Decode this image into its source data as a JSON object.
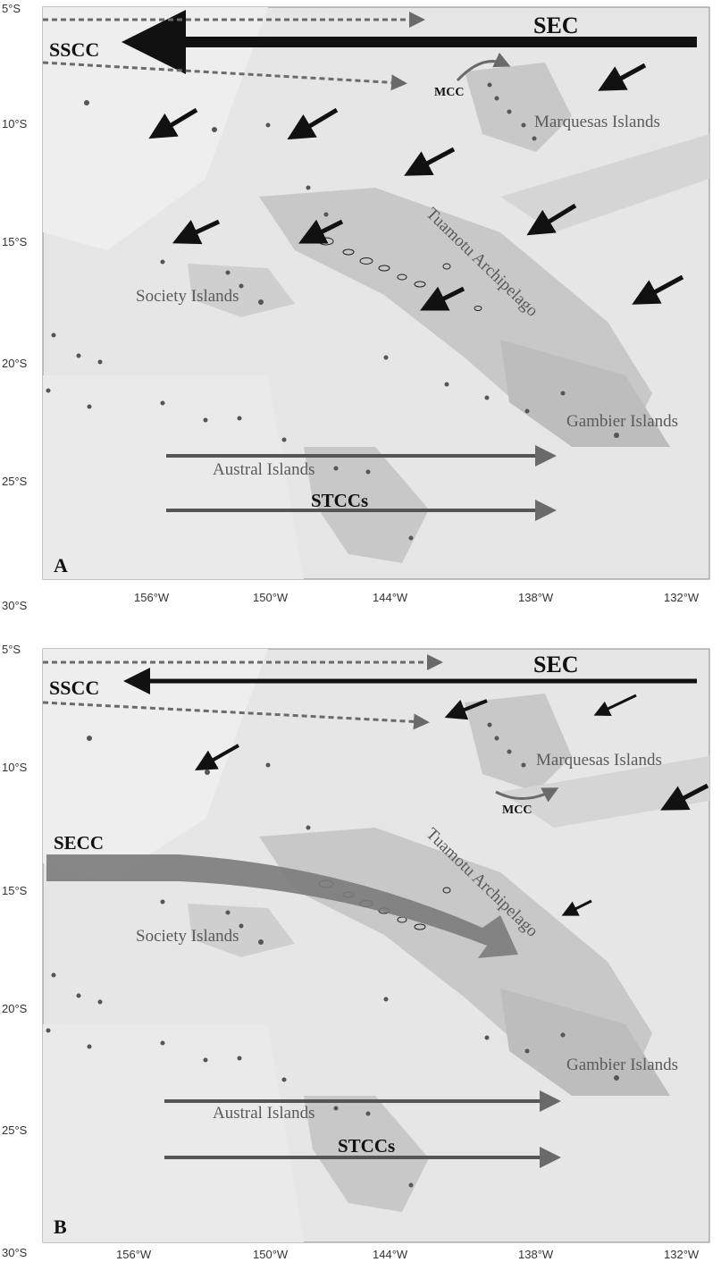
{
  "panels": [
    {
      "letter": "A",
      "lat_labels": [
        "5°S",
        "10°S",
        "15°S",
        "20°S",
        "25°S",
        "30°S"
      ],
      "lon_labels": [
        "156°W",
        "150°W",
        "144°W",
        "138°W",
        "132°W"
      ],
      "islands": {
        "marquesas": "Marquesas Islands",
        "tuamotu": "Tuamotu Archipelago",
        "society": "Society Islands",
        "gambier": "Gambier Islands",
        "austral": "Austral Islands"
      },
      "currents": {
        "sec": "SEC",
        "sscc": "SSCC",
        "mcc": "MCC",
        "stccs": "STCCs"
      }
    },
    {
      "letter": "B",
      "lat_labels": [
        "5°S",
        "10°S",
        "15°S",
        "20°S",
        "25°S",
        "30°S"
      ],
      "lon_labels": [
        "156°W",
        "150°W",
        "144°W",
        "138°W",
        "132°W"
      ],
      "islands": {
        "marquesas": "Marquesas Islands",
        "tuamotu": "Tuamotu Archipelago",
        "society": "Society Islands",
        "gambier": "Gambier Islands",
        "austral": "Austral Islands"
      },
      "currents": {
        "sec": "SEC",
        "sscc": "SSCC",
        "mcc": "MCC",
        "stccs": "STCCs",
        "secc": "SECC"
      }
    }
  ],
  "colors": {
    "ocean_deep": "#e3e3e3",
    "ocean_light": "#eeeeee",
    "shelf": "#c9c9c9",
    "ridge": "#b3b3b3",
    "arrow_black": "#111111",
    "arrow_gray": "#6a6a6a",
    "secc_band": "#7b7b7b"
  }
}
